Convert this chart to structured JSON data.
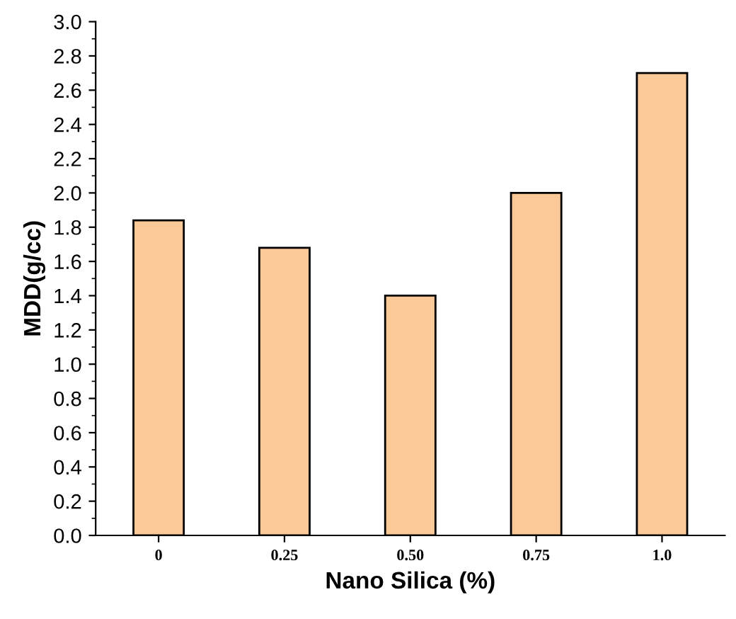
{
  "chart_data": {
    "type": "bar",
    "xlabel": "Nano Silica (%)",
    "ylabel": "MDD(g/cc)",
    "categories": [
      "0",
      "0.25",
      "0.50",
      "0.75",
      "1.0"
    ],
    "values": [
      1.84,
      1.68,
      1.4,
      2.0,
      2.7
    ],
    "color": "#fbc897",
    "ylim": [
      0,
      3.0
    ],
    "yticks": [
      {
        "value": 0,
        "label": "0.0"
      },
      0.2,
      0.4,
      0.6,
      0.8,
      {
        "value": 1,
        "label": "1.0"
      },
      1.2,
      1.4,
      1.6,
      1.8,
      {
        "value": 2,
        "label": "2.0"
      },
      2.2,
      2.4,
      2.6,
      2.8,
      {
        "value": 3,
        "label": "3.0"
      }
    ],
    "grid": false,
    "legend": false
  }
}
